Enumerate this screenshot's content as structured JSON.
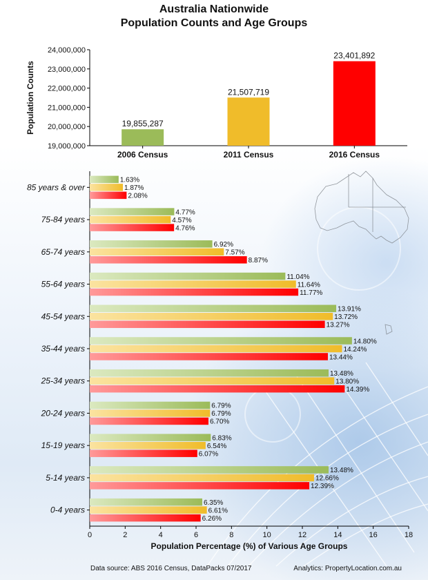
{
  "title_line1": "Australia Nationwide",
  "title_line2": "Population Counts and Age Groups",
  "footer": {
    "source": "Data source: ABS 2016 Census, DataPacks 07/2017",
    "analytics": "Analytics: PropertyLocation.com.au"
  },
  "colors": {
    "census2006": "#9bbb59",
    "census2011": "#f0bc2a",
    "census2016": "#ff0000"
  },
  "chart_data": [
    {
      "type": "bar",
      "title": "",
      "categories": [
        "2006 Census",
        "2011 Census",
        "2016 Census"
      ],
      "values": [
        19855287,
        21507719,
        23401892
      ],
      "value_labels": [
        "19,855,287",
        "21,507,719",
        "23,401,892"
      ],
      "ylabel": "Population Counts",
      "xlabel": "",
      "ylim": [
        19000000,
        24000000
      ],
      "yticks": [
        19000000,
        20000000,
        21000000,
        22000000,
        23000000,
        24000000
      ],
      "ytick_labels": [
        "19,000,000",
        "20,000,000",
        "21,000,000",
        "22,000,000",
        "23,000,000",
        "24,000,000"
      ],
      "grid": false
    },
    {
      "type": "bar",
      "orientation": "horizontal",
      "title": "",
      "categories": [
        "85 years & over",
        "75-84 years",
        "65-74 years",
        "55-64 years",
        "45-54 years",
        "35-44 years",
        "25-34 years",
        "20-24 years",
        "15-19 years",
        "5-14 years",
        "0-4 years"
      ],
      "series": [
        {
          "values": [
            1.63,
            4.77,
            6.92,
            11.04,
            13.91,
            14.8,
            13.48,
            6.79,
            6.83,
            13.48,
            6.35
          ],
          "labels": [
            "1.63%",
            "4.77%",
            "6.92%",
            "11.04%",
            "13.91%",
            "14.80%",
            "13.48%",
            "6.79%",
            "6.83%",
            "13.48%",
            "6.35%"
          ]
        },
        {
          "values": [
            1.87,
            4.57,
            7.57,
            11.64,
            13.72,
            14.24,
            13.8,
            6.79,
            6.54,
            12.66,
            6.61
          ],
          "labels": [
            "1.87%",
            "4.57%",
            "7.57%",
            "11.64%",
            "13.72%",
            "14.24%",
            "13.80%",
            "6.79%",
            "6.54%",
            "12.66%",
            "6.61%"
          ]
        },
        {
          "values": [
            2.08,
            4.76,
            8.87,
            11.77,
            13.27,
            13.44,
            14.39,
            6.7,
            6.07,
            12.39,
            6.26
          ],
          "labels": [
            "2.08%",
            "4.76%",
            "8.87%",
            "11.77%",
            "13.27%",
            "13.44%",
            "14.39%",
            "6.70%",
            "6.07%",
            "12.39%",
            "6.26%"
          ]
        }
      ],
      "xlabel": "Population Percentage (%) of Various Age Groups",
      "ylabel": "",
      "xlim": [
        0,
        18
      ],
      "xticks": [
        0,
        2,
        4,
        6,
        8,
        10,
        12,
        14,
        16,
        18
      ],
      "grid": false
    }
  ]
}
